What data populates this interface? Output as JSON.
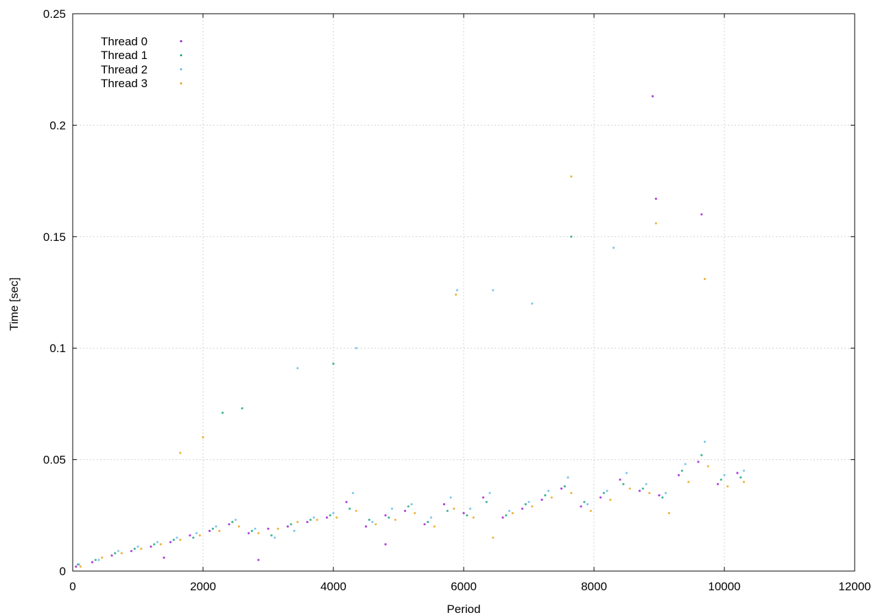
{
  "chart_data": {
    "type": "scatter",
    "title": "",
    "xlabel": "Period",
    "ylabel": "Time [sec]",
    "xlim": [
      0,
      12000
    ],
    "ylim": [
      0,
      0.25
    ],
    "x_ticks": [
      0,
      2000,
      4000,
      6000,
      8000,
      10000,
      12000
    ],
    "x_tick_labels": [
      "0",
      "2000",
      "4000",
      "6000",
      "8000",
      "10000",
      "12000"
    ],
    "y_ticks": [
      0,
      0.05,
      0.1,
      0.15,
      0.2,
      0.25
    ],
    "y_tick_labels": [
      "0",
      "0.05",
      "0.1",
      "0.15",
      "0.2",
      "0.25"
    ],
    "grid": true,
    "legend_position": "top-left",
    "series": [
      {
        "name": "Thread 0",
        "color": "#9400d3",
        "points": [
          [
            50,
            0.002
          ],
          [
            300,
            0.004
          ],
          [
            600,
            0.007
          ],
          [
            900,
            0.009
          ],
          [
            1200,
            0.011
          ],
          [
            1400,
            0.006
          ],
          [
            1500,
            0.013
          ],
          [
            1800,
            0.016
          ],
          [
            2100,
            0.018
          ],
          [
            2400,
            0.021
          ],
          [
            2700,
            0.017
          ],
          [
            3000,
            0.019
          ],
          [
            3300,
            0.02
          ],
          [
            3600,
            0.022
          ],
          [
            3900,
            0.024
          ],
          [
            4200,
            0.031
          ],
          [
            4500,
            0.02
          ],
          [
            4800,
            0.025
          ],
          [
            5100,
            0.027
          ],
          [
            5400,
            0.021
          ],
          [
            5700,
            0.03
          ],
          [
            6000,
            0.026
          ],
          [
            6300,
            0.033
          ],
          [
            6600,
            0.024
          ],
          [
            6900,
            0.028
          ],
          [
            7200,
            0.032
          ],
          [
            7500,
            0.037
          ],
          [
            7800,
            0.029
          ],
          [
            8100,
            0.033
          ],
          [
            8400,
            0.041
          ],
          [
            8700,
            0.036
          ],
          [
            9000,
            0.034
          ],
          [
            9300,
            0.043
          ],
          [
            9600,
            0.049
          ],
          [
            9900,
            0.039
          ],
          [
            10200,
            0.044
          ],
          [
            2850,
            0.005
          ],
          [
            4800,
            0.012
          ],
          [
            8900,
            0.213
          ],
          [
            8950,
            0.167
          ],
          [
            9650,
            0.16
          ]
        ]
      },
      {
        "name": "Thread 1",
        "color": "#009e73",
        "points": [
          [
            80,
            0.003
          ],
          [
            350,
            0.005
          ],
          [
            650,
            0.008
          ],
          [
            950,
            0.01
          ],
          [
            1250,
            0.012
          ],
          [
            1550,
            0.014
          ],
          [
            1850,
            0.015
          ],
          [
            2150,
            0.019
          ],
          [
            2450,
            0.022
          ],
          [
            2750,
            0.018
          ],
          [
            3050,
            0.016
          ],
          [
            3350,
            0.021
          ],
          [
            3650,
            0.023
          ],
          [
            3950,
            0.025
          ],
          [
            4250,
            0.028
          ],
          [
            4550,
            0.023
          ],
          [
            4850,
            0.024
          ],
          [
            5150,
            0.029
          ],
          [
            5450,
            0.022
          ],
          [
            5750,
            0.027
          ],
          [
            6050,
            0.025
          ],
          [
            6350,
            0.031
          ],
          [
            6650,
            0.025
          ],
          [
            6950,
            0.03
          ],
          [
            7250,
            0.034
          ],
          [
            7550,
            0.038
          ],
          [
            7850,
            0.031
          ],
          [
            8150,
            0.035
          ],
          [
            8450,
            0.039
          ],
          [
            8750,
            0.037
          ],
          [
            9050,
            0.033
          ],
          [
            9350,
            0.045
          ],
          [
            9650,
            0.052
          ],
          [
            9950,
            0.041
          ],
          [
            10250,
            0.042
          ],
          [
            2300,
            0.071
          ],
          [
            2600,
            0.073
          ],
          [
            4000,
            0.093
          ],
          [
            7650,
            0.15
          ]
        ]
      },
      {
        "name": "Thread 2",
        "color": "#56b4e9",
        "points": [
          [
            100,
            0.003
          ],
          [
            400,
            0.005
          ],
          [
            700,
            0.009
          ],
          [
            1000,
            0.011
          ],
          [
            1300,
            0.013
          ],
          [
            1600,
            0.015
          ],
          [
            1900,
            0.017
          ],
          [
            2200,
            0.02
          ],
          [
            2500,
            0.023
          ],
          [
            2800,
            0.019
          ],
          [
            3100,
            0.015
          ],
          [
            3400,
            0.018
          ],
          [
            3700,
            0.024
          ],
          [
            4000,
            0.026
          ],
          [
            4300,
            0.035
          ],
          [
            4600,
            0.022
          ],
          [
            4900,
            0.028
          ],
          [
            5200,
            0.03
          ],
          [
            5500,
            0.024
          ],
          [
            5800,
            0.033
          ],
          [
            6100,
            0.028
          ],
          [
            6400,
            0.035
          ],
          [
            6700,
            0.027
          ],
          [
            7000,
            0.031
          ],
          [
            7300,
            0.036
          ],
          [
            7600,
            0.042
          ],
          [
            7900,
            0.03
          ],
          [
            8200,
            0.036
          ],
          [
            8500,
            0.044
          ],
          [
            8800,
            0.039
          ],
          [
            9100,
            0.035
          ],
          [
            9400,
            0.048
          ],
          [
            9700,
            0.058
          ],
          [
            10000,
            0.043
          ],
          [
            10300,
            0.045
          ],
          [
            3450,
            0.091
          ],
          [
            4350,
            0.1
          ],
          [
            5900,
            0.126
          ],
          [
            6450,
            0.126
          ],
          [
            7050,
            0.12
          ],
          [
            8300,
            0.145
          ]
        ]
      },
      {
        "name": "Thread 3",
        "color": "#e69f00",
        "points": [
          [
            120,
            0.002
          ],
          [
            450,
            0.006
          ],
          [
            750,
            0.008
          ],
          [
            1050,
            0.01
          ],
          [
            1350,
            0.012
          ],
          [
            1650,
            0.014
          ],
          [
            1950,
            0.016
          ],
          [
            2250,
            0.018
          ],
          [
            2550,
            0.02
          ],
          [
            2850,
            0.017
          ],
          [
            3150,
            0.019
          ],
          [
            3450,
            0.022
          ],
          [
            3750,
            0.023
          ],
          [
            4050,
            0.024
          ],
          [
            4350,
            0.027
          ],
          [
            4650,
            0.021
          ],
          [
            4950,
            0.023
          ],
          [
            5250,
            0.026
          ],
          [
            5550,
            0.02
          ],
          [
            5850,
            0.028
          ],
          [
            6150,
            0.024
          ],
          [
            6450,
            0.015
          ],
          [
            6750,
            0.026
          ],
          [
            7050,
            0.029
          ],
          [
            7350,
            0.033
          ],
          [
            7650,
            0.035
          ],
          [
            7950,
            0.027
          ],
          [
            8250,
            0.032
          ],
          [
            8550,
            0.037
          ],
          [
            8850,
            0.035
          ],
          [
            9150,
            0.026
          ],
          [
            9450,
            0.04
          ],
          [
            9750,
            0.047
          ],
          [
            10050,
            0.038
          ],
          [
            10300,
            0.04
          ],
          [
            1650,
            0.053
          ],
          [
            2000,
            0.06
          ],
          [
            5880,
            0.124
          ],
          [
            7650,
            0.177
          ],
          [
            8950,
            0.156
          ],
          [
            9700,
            0.131
          ]
        ]
      }
    ]
  }
}
